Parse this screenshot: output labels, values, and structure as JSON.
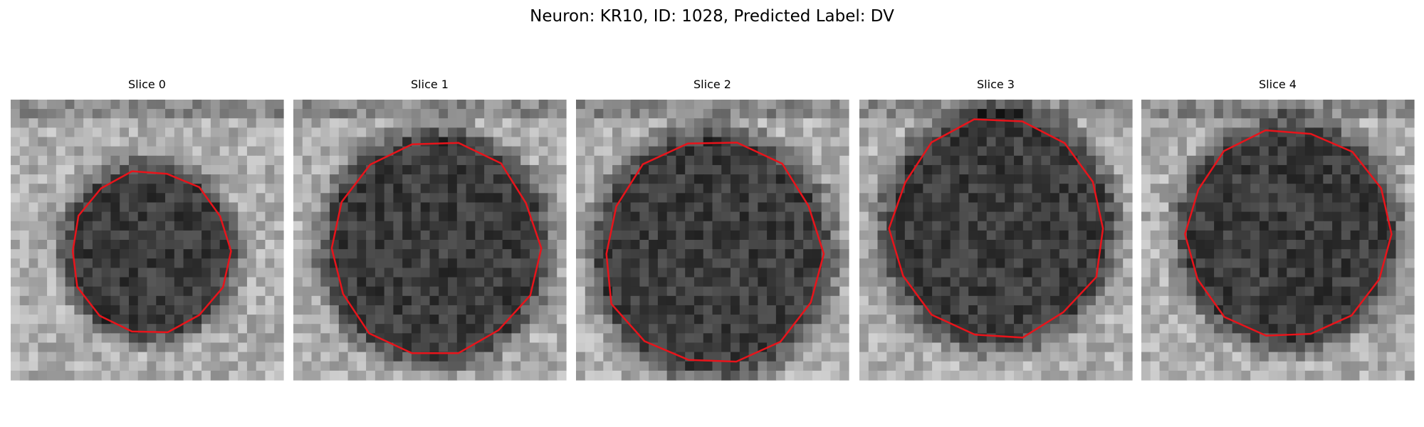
{
  "title": "Neuron: KR10, ID: 1028, Predicted Label: DV",
  "panels": [
    {
      "title": "Slice 0"
    },
    {
      "title": "Slice 1"
    },
    {
      "title": "Slice 2"
    },
    {
      "title": "Slice 3"
    },
    {
      "title": "Slice 4"
    }
  ]
}
